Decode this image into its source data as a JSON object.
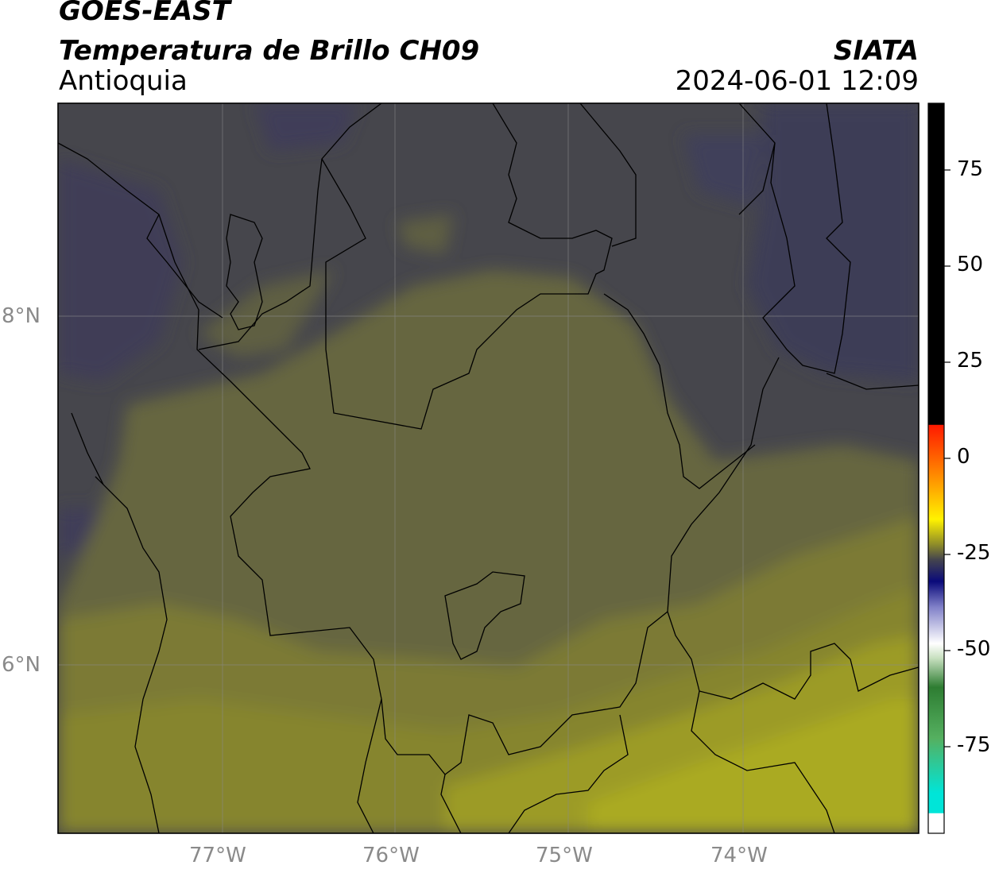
{
  "header": {
    "satellite": "GOES-EAST",
    "product": "Temperatura de Brillo CH09",
    "region": "Antioquia",
    "organization": "SIATA",
    "datetime": "2024-06-01 12:09"
  },
  "map": {
    "lat_labels": [
      "8°N",
      "6°N"
    ],
    "lon_labels": [
      "77°W",
      "76°W",
      "75°W",
      "74°W"
    ]
  },
  "colorbar": {
    "tick_labels": [
      "75",
      "50",
      "25",
      "0",
      "-25",
      "-50",
      "-75"
    ],
    "tick_values": [
      75,
      50,
      25,
      0,
      -25,
      -50,
      -75
    ],
    "colors": {
      "warm_black": "#000000",
      "red": "#ff1a00",
      "orange": "#ff9900",
      "yellow": "#ffee00",
      "olive": "#8c8a2a",
      "dark_gray": "#45454d",
      "navy": "#0a0a7a",
      "white": "#ffffff",
      "green": "#2e7d32",
      "cyan": "#00e5d8"
    }
  },
  "colors": {
    "background_dark": "#46464c",
    "background_bluish": "#3e3d55",
    "olive": "#6a6a40",
    "olive_mid": "#84832f",
    "olive_light": "#a6a624",
    "border": "#000000"
  }
}
